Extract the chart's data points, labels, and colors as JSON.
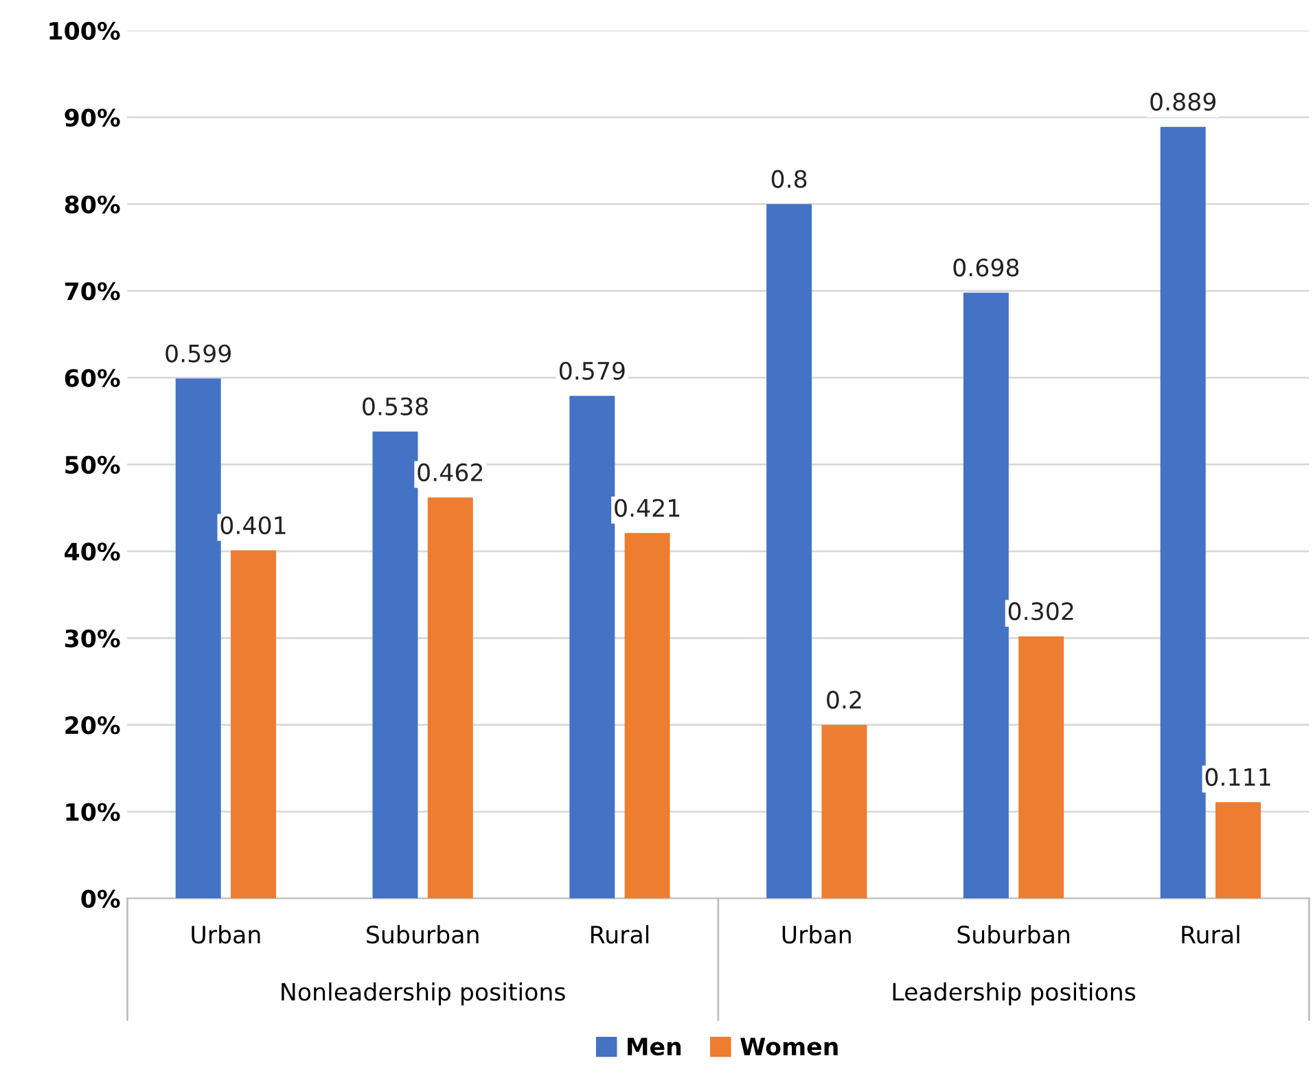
{
  "chart_data": {
    "type": "bar",
    "categories": [
      "Urban",
      "Suburban",
      "Rural",
      "Urban",
      "Suburban",
      "Rural"
    ],
    "series": [
      {
        "name": "Men",
        "color": "#4472c4",
        "values": [
          0.599,
          0.538,
          0.579,
          0.8,
          0.698,
          0.889
        ]
      },
      {
        "name": "Women",
        "color": "#ed7d31",
        "values": [
          0.401,
          0.462,
          0.421,
          0.2,
          0.302,
          0.111
        ]
      }
    ],
    "ylim": [
      0,
      1
    ],
    "yticks": [
      {
        "value": 0,
        "label": "0%"
      },
      {
        "value": 0.1,
        "label": "10%"
      },
      {
        "value": 0.2,
        "label": "20%"
      },
      {
        "value": 0.3,
        "label": "30%"
      },
      {
        "value": 0.4,
        "label": "40%"
      },
      {
        "value": 0.5,
        "label": "50%"
      },
      {
        "value": 0.6,
        "label": "60%"
      },
      {
        "value": 0.7,
        "label": "70%"
      },
      {
        "value": 0.8,
        "label": "80%"
      },
      {
        "value": 0.9,
        "label": "90%"
      },
      {
        "value": 1,
        "label": "100%"
      }
    ],
    "annotations": [
      "Nonleadership positions",
      "Leadership positions"
    ],
    "data_labels": true,
    "grid": "y",
    "legend": "bottom"
  }
}
